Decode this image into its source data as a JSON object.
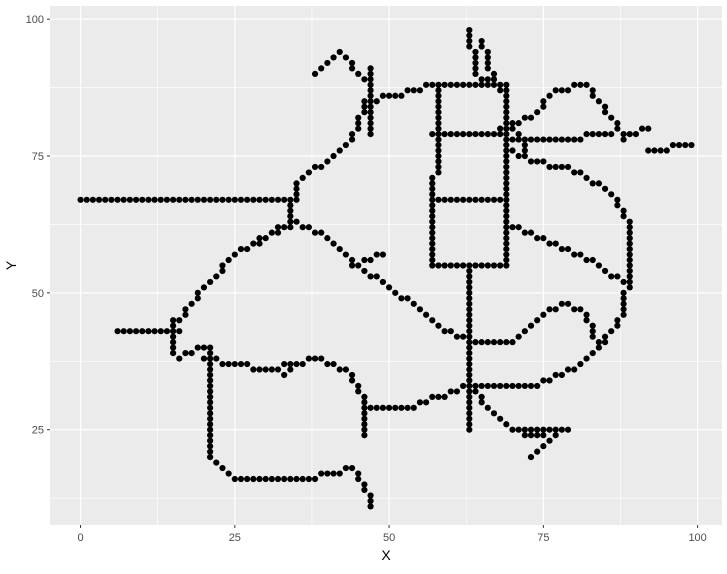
{
  "chart_data": {
    "type": "scatter",
    "title": "",
    "xlabel": "X",
    "ylabel": "Y",
    "xlim": [
      -4.95,
      103.95
    ],
    "ylim": [
      7.6,
      102.4
    ],
    "xticks": [
      0,
      25,
      50,
      75,
      100
    ],
    "yticks": [
      25,
      50,
      75,
      100
    ],
    "xminor": [
      12.5,
      37.5,
      62.5,
      87.5
    ],
    "yminor": [
      12.5,
      37.5,
      62.5,
      87.5
    ],
    "grid": true,
    "legend": "none",
    "colors": {
      "panel_background": "#ebebeb",
      "grid_major": "#ffffff",
      "point": "#000000",
      "tick_label": "#4d4d4d"
    },
    "series": [
      {
        "segments": [
          [
            [
              0,
              67
            ],
            [
              35,
              67
            ]
          ],
          [
            [
              6,
              43
            ],
            [
              16,
              43
            ]
          ],
          [
            [
              15,
              45
            ],
            [
              15,
              39
            ]
          ],
          [
            [
              16,
              38
            ],
            [
              20,
              40
            ]
          ],
          [
            [
              16,
              45
            ],
            [
              20,
              51
            ],
            [
              25,
              57
            ],
            [
              34,
              63
            ],
            [
              35,
              70
            ],
            [
              42,
              76
            ],
            [
              45,
              80
            ],
            [
              46,
              85
            ]
          ],
          [
            [
              38,
              90
            ],
            [
              42,
              94
            ],
            [
              46,
              89
            ]
          ],
          [
            [
              47,
              91
            ],
            [
              47,
              79
            ]
          ],
          [
            [
              47,
              85
            ],
            [
              55,
              87
            ],
            [
              57,
              88
            ]
          ],
          [
            [
              58,
              88
            ],
            [
              57,
              55
            ]
          ],
          [
            [
              57,
              88
            ],
            [
              69,
              88
            ]
          ],
          [
            [
              69,
              88
            ],
            [
              69,
              55
            ]
          ],
          [
            [
              57,
              79
            ],
            [
              69,
              79
            ]
          ],
          [
            [
              57,
              67
            ],
            [
              69,
              67
            ]
          ],
          [
            [
              57,
              55
            ],
            [
              69,
              55
            ]
          ],
          [
            [
              63,
              55
            ],
            [
              63,
              25
            ]
          ],
          [
            [
              63,
              98
            ],
            [
              64,
              90
            ],
            [
              68,
              87
            ]
          ],
          [
            [
              65,
              96
            ],
            [
              67,
              88
            ]
          ],
          [
            [
              25,
              57
            ],
            [
              35,
              63
            ],
            [
              40,
              60
            ],
            [
              45,
              55
            ],
            [
              50,
              51
            ],
            [
              55,
              47
            ],
            [
              59,
              43
            ],
            [
              63,
              41
            ]
          ],
          [
            [
              44,
              55
            ],
            [
              49,
              57
            ]
          ],
          [
            [
              63,
              41
            ],
            [
              70,
              41
            ],
            [
              74,
              45
            ],
            [
              78,
              48
            ],
            [
              82,
              46
            ],
            [
              84,
              40
            ],
            [
              88,
              46
            ],
            [
              89,
              55
            ],
            [
              89,
              62
            ],
            [
              86,
              68
            ],
            [
              81,
              72
            ],
            [
              73,
              74
            ],
            [
              70,
              76
            ]
          ],
          [
            [
              70,
              62
            ],
            [
              75,
              60
            ],
            [
              84,
              55
            ],
            [
              89,
              51
            ]
          ],
          [
            [
              68,
              80
            ],
            [
              73,
              82
            ],
            [
              77,
              87
            ],
            [
              82,
              88
            ],
            [
              86,
              82
            ],
            [
              88,
              78
            ],
            [
              92,
              80
            ]
          ],
          [
            [
              70,
              78
            ],
            [
              77,
              78
            ],
            [
              86,
              79
            ]
          ],
          [
            [
              70,
              80
            ],
            [
              72,
              76
            ]
          ],
          [
            [
              92,
              76
            ],
            [
              99,
              77
            ]
          ],
          [
            [
              63,
              33
            ],
            [
              73,
              33
            ],
            [
              80,
              36
            ],
            [
              84,
              40
            ]
          ],
          [
            [
              63,
              33
            ],
            [
              67,
              28
            ],
            [
              70,
              25
            ],
            [
              79,
              25
            ]
          ],
          [
            [
              72,
              24
            ],
            [
              79,
              25
            ]
          ],
          [
            [
              73,
              20
            ],
            [
              77,
              24
            ]
          ],
          [
            [
              21,
              40
            ],
            [
              21,
              20
            ],
            [
              25,
              16
            ],
            [
              37,
              16
            ],
            [
              44,
              18
            ],
            [
              46,
              15
            ],
            [
              47,
              11
            ]
          ],
          [
            [
              20,
              38
            ],
            [
              25,
              37
            ],
            [
              30,
              36
            ],
            [
              35,
              37
            ],
            [
              38,
              38
            ],
            [
              43,
              36
            ],
            [
              46,
              30
            ],
            [
              46,
              24
            ]
          ],
          [
            [
              33,
              35
            ],
            [
              35,
              37
            ]
          ],
          [
            [
              46,
              29
            ],
            [
              49,
              29
            ],
            [
              53,
              29
            ],
            [
              58,
              31
            ],
            [
              63,
              33
            ]
          ]
        ]
      }
    ]
  }
}
